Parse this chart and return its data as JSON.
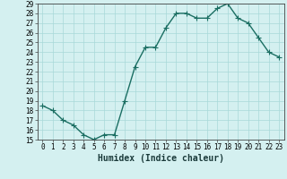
{
  "title": "",
  "xlabel": "Humidex (Indice chaleur)",
  "x": [
    0,
    1,
    2,
    3,
    4,
    5,
    6,
    7,
    8,
    9,
    10,
    11,
    12,
    13,
    14,
    15,
    16,
    17,
    18,
    19,
    20,
    21,
    22,
    23
  ],
  "y": [
    18.5,
    18.0,
    17.0,
    16.5,
    15.5,
    15.0,
    15.5,
    15.5,
    19.0,
    22.5,
    24.5,
    24.5,
    26.5,
    28.0,
    28.0,
    27.5,
    27.5,
    28.5,
    29.0,
    27.5,
    27.0,
    25.5,
    24.0,
    23.5
  ],
  "line_color": "#1a6e62",
  "marker": "+",
  "markersize": 4,
  "linewidth": 1.0,
  "markeredgewidth": 0.8,
  "background_color": "#d4f0f0",
  "grid_color": "#a8d8d8",
  "ylim": [
    15,
    29
  ],
  "xlim": [
    -0.5,
    23.5
  ],
  "yticks": [
    15,
    16,
    17,
    18,
    19,
    20,
    21,
    22,
    23,
    24,
    25,
    26,
    27,
    28,
    29
  ],
  "xticks": [
    0,
    1,
    2,
    3,
    4,
    5,
    6,
    7,
    8,
    9,
    10,
    11,
    12,
    13,
    14,
    15,
    16,
    17,
    18,
    19,
    20,
    21,
    22,
    23
  ],
  "tick_fontsize": 5.5,
  "xlabel_fontsize": 7,
  "spine_color": "#444444"
}
